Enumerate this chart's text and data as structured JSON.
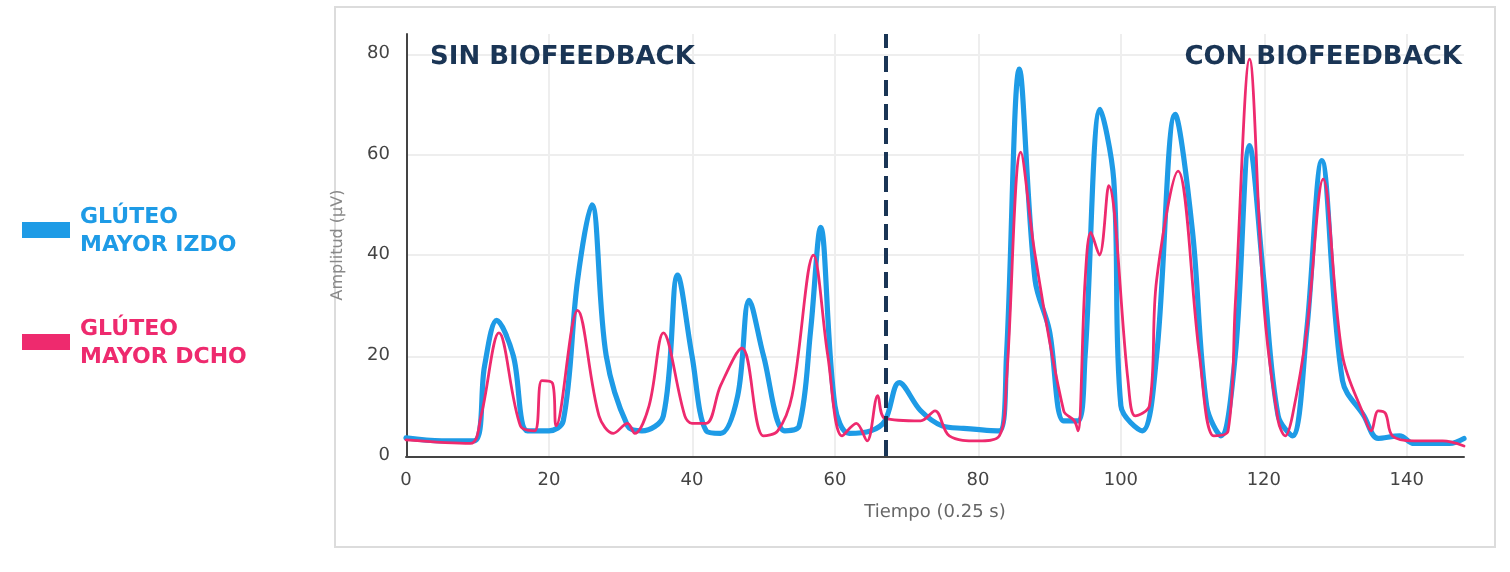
{
  "chart_data": {
    "type": "line",
    "xlabel": "Tiempo (0.25 s)",
    "ylabel": "Amplitud (µV)",
    "xlim": [
      0,
      148
    ],
    "ylim": [
      0,
      84
    ],
    "xticks": [
      0,
      20,
      40,
      60,
      80,
      100,
      120,
      140
    ],
    "yticks": [
      0,
      20,
      40,
      60,
      80
    ],
    "grid": true,
    "legend": "left",
    "marker": "none",
    "line_style": "solid",
    "annotations": [
      "SIN BIOFEEDBACK",
      "CON BIOFEEDBACK"
    ],
    "ref_lines": [
      {
        "axis": "x",
        "value": 67,
        "color": "#1a3555",
        "line_style": "dashed"
      }
    ],
    "series": [
      {
        "name": "GLÚTEO MAYOR IZDO",
        "color": "#1e9be6",
        "x": [
          0,
          5,
          9.5,
          11,
          12.7,
          15,
          17,
          20,
          22,
          24,
          26,
          28,
          31,
          33,
          36,
          38,
          40,
          42,
          44,
          46.4,
          48,
          50,
          53,
          55,
          56.6,
          58,
          60,
          62,
          65,
          67,
          69,
          72,
          75,
          78,
          83,
          84,
          85.8,
          88,
          90,
          92,
          94,
          95,
          97.1,
          99,
          100,
          103,
          105,
          107.6,
          110,
          112,
          114,
          116,
          118,
          120,
          122,
          124,
          126,
          128.1,
          131,
          134,
          136,
          139,
          141,
          146,
          148
        ],
        "values": [
          3.6,
          3,
          3,
          18,
          27,
          20,
          5,
          5,
          7,
          35,
          50,
          20,
          6,
          5,
          8,
          36,
          20,
          5,
          4.5,
          12,
          31,
          20,
          5,
          6,
          25,
          45.5,
          10,
          4.5,
          5,
          7,
          14.6,
          9,
          6,
          5.5,
          5,
          20,
          77,
          35,
          25,
          7,
          7,
          20,
          69,
          55,
          10,
          5,
          20,
          68,
          45,
          10,
          4,
          20,
          61.8,
          35,
          8,
          4,
          25,
          58.8,
          15,
          8,
          3.5,
          4,
          2.5,
          2.5,
          3.5
        ]
      },
      {
        "name": "GLÚTEO MAYOR DCHO",
        "color": "#ee2a6e",
        "x": [
          0,
          9,
          10.5,
          13,
          16,
          18,
          19,
          20.5,
          21,
          24,
          27,
          29,
          31,
          32,
          34,
          36,
          39,
          40,
          42,
          44,
          47,
          50,
          52,
          54,
          57,
          59,
          61,
          63,
          64.5,
          66,
          67,
          72,
          74,
          76,
          80,
          83,
          84,
          86,
          88,
          92,
          93.5,
          94,
          95,
          95.8,
          97,
          98.3,
          101,
          102,
          104,
          105,
          108,
          111,
          113,
          115,
          116,
          118,
          120,
          122,
          123,
          124,
          126,
          128.3,
          131,
          134,
          135,
          136,
          137,
          138,
          141,
          145,
          148
        ],
        "values": [
          3.2,
          2.5,
          8,
          24.5,
          6,
          5,
          15,
          14.5,
          6,
          29,
          8,
          4.5,
          6.5,
          4.5,
          10,
          24.5,
          8,
          6.5,
          6.5,
          14,
          21.5,
          4,
          5,
          12,
          40,
          20,
          4,
          6.5,
          3,
          12,
          7.5,
          7,
          9,
          4,
          3,
          4,
          15,
          60.5,
          40,
          9,
          7,
          5,
          35,
          44.5,
          40,
          53.8,
          15,
          8,
          10,
          35,
          56.7,
          20,
          4,
          5,
          30,
          79,
          30,
          7,
          4,
          8,
          25,
          55.1,
          20,
          8,
          5,
          9,
          8.5,
          4,
          3,
          3,
          2
        ]
      }
    ]
  }
}
